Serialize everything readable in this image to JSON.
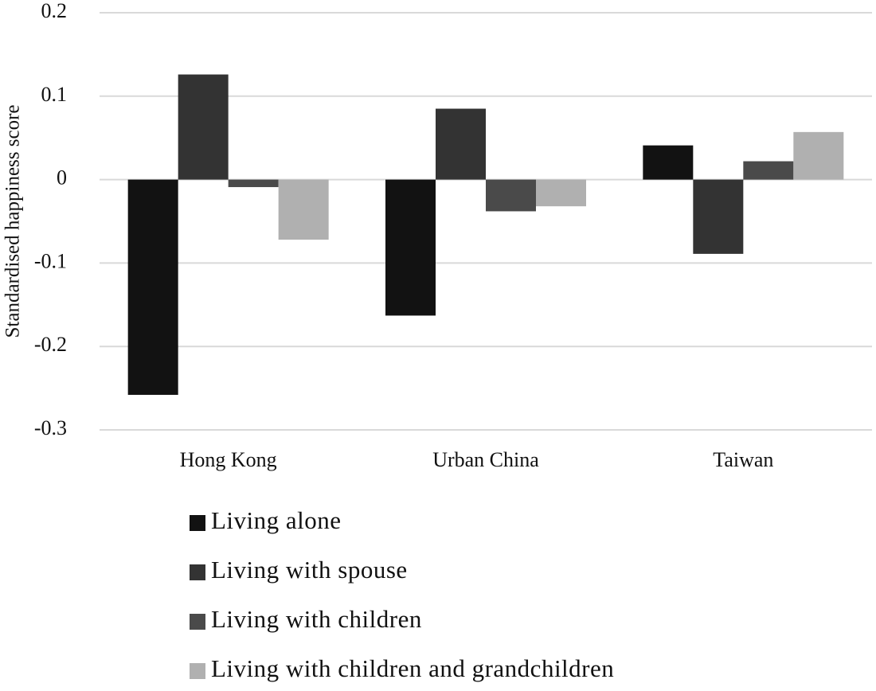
{
  "chart_data": {
    "type": "bar",
    "y_label": "Standardised happiness score",
    "categories": [
      "Hong Kong",
      "Urban China",
      "Taiwan"
    ],
    "series": [
      {
        "name": "Living alone",
        "color": "#121212",
        "values": [
          -0.258,
          -0.163,
          0.041
        ]
      },
      {
        "name": "Living with spouse",
        "color": "#333333",
        "values": [
          0.126,
          0.085,
          -0.089
        ]
      },
      {
        "name": "Living with children",
        "color": "#4a4a4a",
        "values": [
          -0.009,
          -0.038,
          0.022
        ]
      },
      {
        "name": "Living with children and grandchildren",
        "color": "#b0b0b0",
        "values": [
          -0.072,
          -0.032,
          0.057
        ]
      }
    ],
    "ylim": [
      -0.3,
      0.2
    ],
    "yticks": [
      0.2,
      0.1,
      0,
      -0.1,
      -0.2,
      -0.3
    ],
    "grid": true,
    "legend": "bottom"
  }
}
